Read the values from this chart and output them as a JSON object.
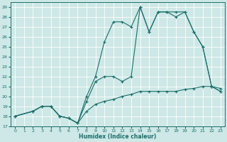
{
  "xlabel": "Humidex (Indice chaleur)",
  "xlim": [
    -0.5,
    23.5
  ],
  "ylim": [
    17,
    29.5
  ],
  "yticks": [
    17,
    18,
    19,
    20,
    21,
    22,
    23,
    24,
    25,
    26,
    27,
    28,
    29
  ],
  "xticks": [
    0,
    1,
    2,
    3,
    4,
    5,
    6,
    7,
    8,
    9,
    10,
    11,
    12,
    13,
    14,
    15,
    16,
    17,
    18,
    19,
    20,
    21,
    22,
    23
  ],
  "bg_color": "#cde8e6",
  "grid_color": "#ffffff",
  "line_color": "#1a6e6a",
  "line1_x": [
    0,
    2,
    3,
    4,
    5,
    6,
    7,
    8,
    9,
    10,
    11,
    12,
    13,
    14,
    15,
    16,
    17,
    18,
    19,
    20,
    21,
    22,
    23
  ],
  "line1_y": [
    18,
    18.5,
    19,
    19,
    18,
    17.8,
    17.3,
    19.5,
    21.5,
    22,
    22,
    21.5,
    22,
    29,
    26.5,
    28.5,
    28.5,
    28,
    28.5,
    26.5,
    25,
    21,
    20.5
  ],
  "line2_x": [
    0,
    2,
    3,
    4,
    5,
    6,
    7,
    8,
    9,
    10,
    11,
    12,
    13,
    14,
    15,
    16,
    17,
    18,
    19,
    20,
    21,
    22,
    23
  ],
  "line2_y": [
    18,
    18.5,
    19,
    19,
    18,
    17.8,
    17.3,
    20,
    22,
    25.5,
    27.5,
    27.5,
    27,
    29,
    26.5,
    28.5,
    28.5,
    28.5,
    28.5,
    26.5,
    25,
    21,
    20.5
  ],
  "line3_x": [
    0,
    2,
    3,
    4,
    5,
    6,
    7,
    8,
    9,
    10,
    11,
    12,
    13,
    14,
    15,
    16,
    17,
    18,
    19,
    20,
    21,
    22,
    23
  ],
  "line3_y": [
    18,
    18.5,
    19,
    19,
    18,
    17.8,
    17.3,
    18.5,
    19.2,
    19.5,
    19.7,
    20.0,
    20.2,
    20.5,
    20.5,
    20.5,
    20.5,
    20.5,
    20.7,
    20.8,
    21.0,
    21.0,
    20.8
  ]
}
